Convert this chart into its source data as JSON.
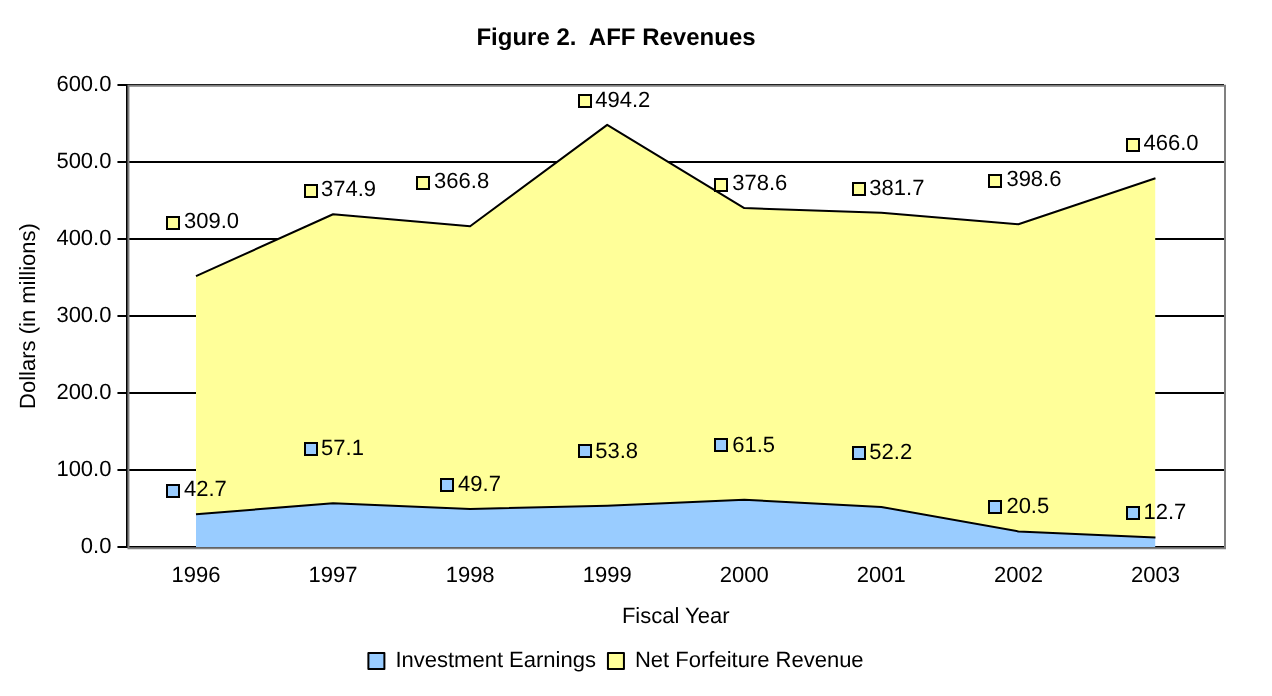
{
  "chart_data": {
    "type": "area",
    "title": "Figure 2.  AFF Revenues",
    "xlabel": "Fiscal Year",
    "ylabel": "Dollars (in millions)",
    "categories": [
      "1996",
      "1997",
      "1998",
      "1999",
      "2000",
      "2001",
      "2002",
      "2003"
    ],
    "stacked": true,
    "series": [
      {
        "name": "Investment Earnings",
        "color": "#99ccff",
        "values": [
          42.7,
          57.1,
          49.7,
          53.8,
          61.5,
          52.2,
          20.5,
          12.7
        ],
        "value_labels": [
          "42.7",
          "57.1",
          "49.7",
          "53.8",
          "61.5",
          "52.2",
          "20.5",
          "12.7"
        ]
      },
      {
        "name": "Net Forfeiture Revenue",
        "color": "#ffff99",
        "values": [
          309.0,
          374.9,
          366.8,
          494.2,
          378.6,
          381.7,
          398.6,
          466.0
        ],
        "value_labels": [
          "309.0",
          "374.9",
          "366.8",
          "494.2",
          "378.6",
          "381.7",
          "398.6",
          "466.0"
        ]
      }
    ],
    "ylim": [
      0,
      600
    ],
    "yticks": [
      {
        "value": 0,
        "label": "0.0"
      },
      {
        "value": 100,
        "label": "100.0"
      },
      {
        "value": 200,
        "label": "200.0"
      },
      {
        "value": 300,
        "label": "300.0"
      },
      {
        "value": 400,
        "label": "400.0"
      },
      {
        "value": 500,
        "label": "500.0"
      },
      {
        "value": 600,
        "label": "600.0"
      }
    ],
    "grid": "y",
    "legend": "bottom",
    "marker": "none"
  }
}
